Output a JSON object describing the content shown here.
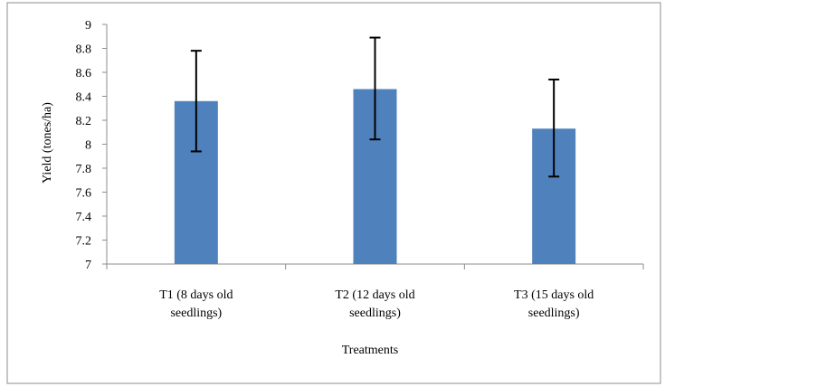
{
  "chart_data": {
    "type": "bar",
    "title": "",
    "xlabel": "Treatments",
    "ylabel": "Yield (tones/ha)",
    "ylim": [
      7,
      9
    ],
    "yticks": [
      "7",
      "7.2",
      "7.4",
      "7.6",
      "7.8",
      "8",
      "8.2",
      "8.4",
      "8.6",
      "8.8",
      "9"
    ],
    "categories": [
      [
        "T1 (8 days old",
        "seedlings)"
      ],
      [
        "T2 (12 days old",
        "seedlings)"
      ],
      [
        "T3 (15 days old",
        "seedlings)"
      ]
    ],
    "values": [
      8.36,
      8.46,
      8.13
    ],
    "error_bars": [
      {
        "low": 7.94,
        "high": 8.78
      },
      {
        "low": 8.04,
        "high": 8.89
      },
      {
        "low": 7.73,
        "high": 8.54
      }
    ],
    "bar_color": "#4f81bd",
    "grid": false,
    "legend": "none"
  }
}
